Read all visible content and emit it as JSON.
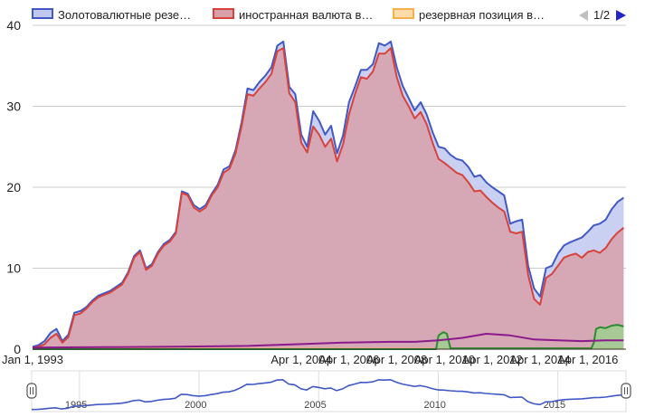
{
  "chart_data": {
    "type": "area",
    "legend": {
      "position": "top",
      "entries": [
        {
          "label": "Золотовалютные резе…",
          "color": "#4059c4",
          "fill": "#c0c8ee"
        },
        {
          "label": "иностранная валюта в…",
          "color": "#d9423a",
          "fill": "#d8a0aa"
        },
        {
          "label": "резервная позиция в…",
          "color": "#f7b04b",
          "fill": "#fbdcaa"
        }
      ],
      "page": "1/2"
    },
    "ylim": [
      0,
      40
    ],
    "y_ticks": [
      0,
      10,
      20,
      30,
      40
    ],
    "y_tick_labels": [
      "0",
      "10",
      "20",
      "30",
      "40"
    ],
    "x_range": [
      1993.0,
      2017.85
    ],
    "x_ticks": [
      1993.0,
      2004.25,
      2006.25,
      2008.25,
      2010.25,
      2012.25,
      2014.25,
      2016.25
    ],
    "x_tick_labels": [
      "Jan 1, 1993",
      "Apr 1, 2004",
      "Apr 1, 2006",
      "Apr 1, 2008",
      "Apr 1, 2010",
      "Apr 1, 2012",
      "Apr 1, 2014",
      "Apr 1, 2016"
    ],
    "grid": true,
    "range_selector": {
      "x_range": [
        1993.0,
        2017.85
      ],
      "tick_years": [
        1995,
        2000,
        2005,
        2010,
        2015
      ],
      "tick_labels": [
        "1995",
        "2000",
        "2005",
        "2010",
        "2015"
      ]
    },
    "series": [
      {
        "name": "Золотовалютные резе…",
        "color": "#4059c4",
        "fill": "#c0c8ee",
        "x": [
          1993.0,
          1993.25,
          1993.5,
          1993.75,
          1994.0,
          1994.25,
          1994.5,
          1994.75,
          1995.0,
          1995.25,
          1995.5,
          1995.75,
          1996.0,
          1996.25,
          1996.5,
          1996.75,
          1997.0,
          1997.25,
          1997.5,
          1997.75,
          1998.0,
          1998.25,
          1998.5,
          1998.75,
          1999.0,
          1999.25,
          1999.5,
          1999.75,
          2000.0,
          2000.25,
          2000.5,
          2000.75,
          2001.0,
          2001.25,
          2001.5,
          2001.75,
          2002.0,
          2002.25,
          2002.5,
          2002.75,
          2003.0,
          2003.25,
          2003.5,
          2003.75,
          2004.0,
          2004.25,
          2004.5,
          2004.75,
          2005.0,
          2005.25,
          2005.5,
          2005.75,
          2006.0,
          2006.25,
          2006.5,
          2006.75,
          2007.0,
          2007.25,
          2007.5,
          2007.75,
          2008.0,
          2008.25,
          2008.5,
          2008.75,
          2009.0,
          2009.25,
          2009.5,
          2009.75,
          2010.0,
          2010.25,
          2010.5,
          2010.75,
          2011.0,
          2011.25,
          2011.5,
          2011.75,
          2012.0,
          2012.25,
          2012.5,
          2012.75,
          2013.0,
          2013.25,
          2013.5,
          2013.75,
          2014.0,
          2014.25,
          2014.5,
          2014.75,
          2015.0,
          2015.25,
          2015.5,
          2015.75,
          2016.0,
          2016.25,
          2016.5,
          2016.75,
          2017.0,
          2017.25,
          2017.5,
          2017.75
        ],
        "values": [
          0.3,
          0.5,
          1.0,
          2.0,
          2.5,
          1.0,
          1.8,
          4.5,
          4.7,
          5.2,
          6.0,
          6.6,
          6.9,
          7.2,
          7.7,
          8.2,
          9.5,
          11.5,
          12.2,
          10.0,
          10.5,
          12.0,
          13.0,
          13.5,
          14.5,
          19.5,
          19.2,
          17.8,
          17.3,
          17.8,
          19.2,
          20.3,
          22.2,
          22.6,
          24.6,
          28.0,
          32.2,
          32.0,
          33.0,
          33.8,
          34.8,
          37.5,
          38.0,
          32.4,
          31.5,
          26.5,
          25.0,
          29.4,
          28.2,
          26.5,
          27.6,
          24.2,
          26.4,
          30.5,
          32.4,
          34.5,
          34.5,
          35.2,
          37.8,
          37.5,
          38.0,
          34.8,
          32.5,
          31.0,
          29.5,
          30.5,
          29.0,
          26.8,
          25.0,
          24.8,
          24.0,
          23.5,
          23.3,
          22.5,
          21.3,
          21.5,
          20.6,
          20.0,
          19.5,
          19.0,
          15.5,
          15.8,
          16.0,
          10.3,
          7.5,
          6.5,
          10.0,
          10.3,
          11.8,
          12.8,
          13.2,
          13.5,
          13.8,
          14.5,
          15.3,
          15.5,
          16.0,
          17.3,
          18.2,
          18.7
        ]
      },
      {
        "name": "иностранная валюта в…",
        "color": "#d9423a",
        "fill": "#d8a0aa",
        "x": [
          1993.0,
          1993.25,
          1993.5,
          1993.75,
          1994.0,
          1994.25,
          1994.5,
          1994.75,
          1995.0,
          1995.25,
          1995.5,
          1995.75,
          1996.0,
          1996.25,
          1996.5,
          1996.75,
          1997.0,
          1997.25,
          1997.5,
          1997.75,
          1998.0,
          1998.25,
          1998.5,
          1998.75,
          1999.0,
          1999.25,
          1999.5,
          1999.75,
          2000.0,
          2000.25,
          2000.5,
          2000.75,
          2001.0,
          2001.25,
          2001.5,
          2001.75,
          2002.0,
          2002.25,
          2002.5,
          2002.75,
          2003.0,
          2003.25,
          2003.5,
          2003.75,
          2004.0,
          2004.25,
          2004.5,
          2004.75,
          2005.0,
          2005.25,
          2005.5,
          2005.75,
          2006.0,
          2006.25,
          2006.5,
          2006.75,
          2007.0,
          2007.25,
          2007.5,
          2007.75,
          2008.0,
          2008.25,
          2008.5,
          2008.75,
          2009.0,
          2009.25,
          2009.5,
          2009.75,
          2010.0,
          2010.25,
          2010.5,
          2010.75,
          2011.0,
          2011.25,
          2011.5,
          2011.75,
          2012.0,
          2012.25,
          2012.5,
          2012.75,
          2013.0,
          2013.25,
          2013.5,
          2013.75,
          2014.0,
          2014.25,
          2014.5,
          2014.75,
          2015.0,
          2015.25,
          2015.5,
          2015.75,
          2016.0,
          2016.25,
          2016.5,
          2016.75,
          2017.0,
          2017.25,
          2017.5,
          2017.75
        ],
        "values": [
          0.2,
          0.3,
          0.6,
          1.4,
          1.9,
          0.8,
          1.5,
          4.2,
          4.4,
          5.0,
          5.8,
          6.4,
          6.7,
          7.0,
          7.5,
          8.0,
          9.3,
          11.3,
          12.0,
          9.8,
          10.3,
          11.8,
          12.8,
          13.3,
          14.3,
          19.3,
          19.0,
          17.5,
          17.0,
          17.5,
          19.0,
          20.0,
          21.8,
          22.3,
          24.2,
          27.5,
          31.5,
          31.3,
          32.2,
          33.0,
          34.0,
          36.8,
          37.2,
          31.6,
          30.5,
          25.5,
          24.3,
          27.5,
          26.5,
          25.0,
          26.0,
          23.2,
          25.3,
          29.0,
          31.5,
          33.6,
          33.4,
          34.3,
          36.5,
          36.5,
          37.2,
          33.6,
          31.3,
          30.0,
          28.5,
          29.3,
          27.8,
          25.5,
          23.5,
          23.0,
          22.4,
          21.8,
          21.5,
          20.6,
          19.5,
          19.6,
          18.8,
          18.1,
          17.5,
          17.0,
          14.5,
          14.3,
          14.5,
          9.2,
          6.2,
          5.5,
          8.8,
          9.3,
          10.3,
          11.3,
          11.6,
          11.8,
          11.3,
          12.0,
          12.2,
          11.9,
          12.5,
          13.6,
          14.4,
          15.0
        ]
      },
      {
        "name": "резервная позиция в…",
        "color": "#f7b04b",
        "fill": "#fbdcaa",
        "x": [
          1993.0,
          2017.75
        ],
        "values": [
          0.05,
          0.05
        ]
      },
      {
        "name": "",
        "color": "#2e8b2e",
        "fill": "#9fcf8f",
        "x": [
          1993.0,
          2009.9,
          2010.0,
          2010.2,
          2010.35,
          2010.5,
          2016.4,
          2016.5,
          2016.6,
          2016.75,
          2017.0,
          2017.25,
          2017.5,
          2017.75
        ],
        "values": [
          0.0,
          0.0,
          1.7,
          2.1,
          1.9,
          0.1,
          0.1,
          0.8,
          2.5,
          2.7,
          2.6,
          2.9,
          3.0,
          2.8
        ]
      },
      {
        "name": "",
        "color": "#8b1a8b",
        "fill": "none",
        "x": [
          1993.0,
          1996.0,
          1999.0,
          2002.0,
          2004.0,
          2006.0,
          2008.0,
          2009.0,
          2010.0,
          2011.0,
          2012.0,
          2013.0,
          2014.0,
          2015.0,
          2016.0,
          2017.0,
          2017.75
        ],
        "values": [
          0.2,
          0.25,
          0.3,
          0.4,
          0.6,
          0.8,
          0.9,
          0.9,
          1.1,
          1.4,
          1.9,
          1.7,
          1.2,
          1.1,
          1.0,
          1.1,
          1.1
        ]
      }
    ]
  }
}
